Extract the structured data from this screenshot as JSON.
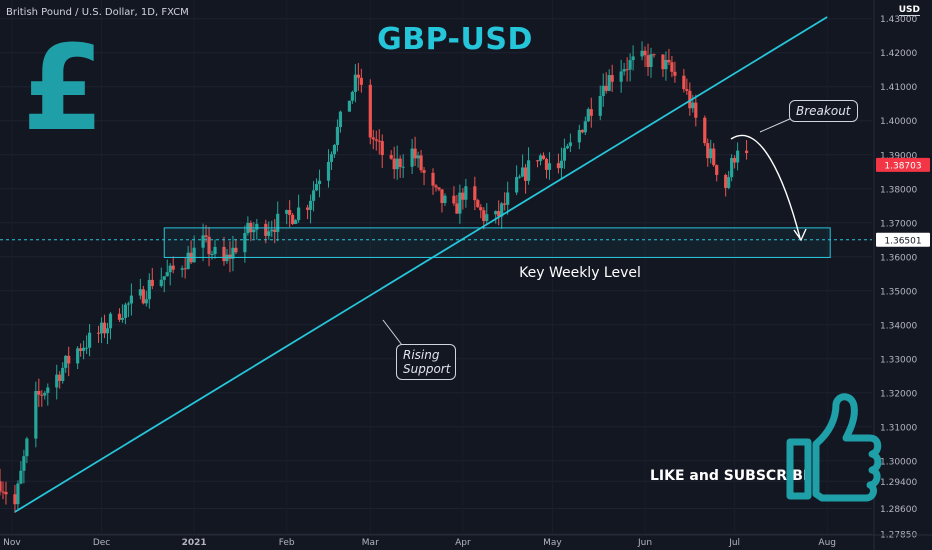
{
  "header": {
    "symbol": "British Pound / U.S. Dollar, 1D, FXCM",
    "currency": "USD",
    "title": "GBP-USD",
    "pound_sign": "£"
  },
  "annotations": {
    "key_level": "Key Weekly Level",
    "breakout": "Breakout",
    "rising_support_line1": "Rising",
    "rising_support_line2": "Support",
    "like": "LIKE and SUBSCRIBE"
  },
  "chart_data": {
    "type": "candlestick",
    "title": "GBP-USD",
    "instrument": "British Pound / U.S. Dollar",
    "timeframe": "1D",
    "source": "FXCM",
    "x_tick_labels": [
      "Nov",
      "Dec",
      "2021",
      "Feb",
      "Mar",
      "Apr",
      "May",
      "Jun",
      "Jul",
      "Aug"
    ],
    "y_tick_labels": [
      "1.43000",
      "1.42000",
      "1.41000",
      "1.40000",
      "1.39000",
      "1.38000",
      "1.37000",
      "1.36000",
      "1.35000",
      "1.34000",
      "1.33000",
      "1.32000",
      "1.31000",
      "1.30000",
      "1.29400",
      "1.28600",
      "1.27850"
    ],
    "ylim": [
      1.2785,
      1.4355
    ],
    "current_price": "1.38703",
    "crosshair_price": "1.36501",
    "key_level_zone": [
      1.3598,
      1.3685
    ],
    "rising_support": {
      "from": [
        "2020-11-02",
        1.285
      ],
      "to": [
        "2021-08-01",
        1.4305
      ]
    },
    "approx_path": [
      [
        "2020-10-28",
        1.294
      ],
      [
        "2020-11-02",
        1.287
      ],
      [
        "2020-11-09",
        1.318
      ],
      [
        "2020-11-16",
        1.325
      ],
      [
        "2020-11-23",
        1.333
      ],
      [
        "2020-12-01",
        1.338
      ],
      [
        "2020-12-07",
        1.344
      ],
      [
        "2020-12-14",
        1.348
      ],
      [
        "2020-12-18",
        1.353
      ],
      [
        "2020-12-24",
        1.355
      ],
      [
        "2021-01-04",
        1.364
      ],
      [
        "2021-01-11",
        1.358
      ],
      [
        "2021-01-18",
        1.367
      ],
      [
        "2021-01-25",
        1.369
      ],
      [
        "2021-02-01",
        1.371
      ],
      [
        "2021-02-08",
        1.376
      ],
      [
        "2021-02-15",
        1.39
      ],
      [
        "2021-02-22",
        1.407
      ],
      [
        "2021-02-25",
        1.413
      ],
      [
        "2021-03-01",
        1.396
      ],
      [
        "2021-03-08",
        1.386
      ],
      [
        "2021-03-15",
        1.391
      ],
      [
        "2021-03-22",
        1.379
      ],
      [
        "2021-03-29",
        1.373
      ],
      [
        "2021-04-01",
        1.379
      ],
      [
        "2021-04-08",
        1.372
      ],
      [
        "2021-04-12",
        1.371
      ],
      [
        "2021-04-19",
        1.381
      ],
      [
        "2021-04-26",
        1.39
      ],
      [
        "2021-05-03",
        1.386
      ],
      [
        "2021-05-10",
        1.397
      ],
      [
        "2021-05-17",
        1.41
      ],
      [
        "2021-05-24",
        1.416
      ],
      [
        "2021-06-01",
        1.418
      ],
      [
        "2021-06-07",
        1.417
      ],
      [
        "2021-06-14",
        1.41
      ],
      [
        "2021-06-21",
        1.393
      ],
      [
        "2021-06-28",
        1.381
      ],
      [
        "2021-07-02",
        1.393
      ],
      [
        "2021-07-05",
        1.389
      ]
    ]
  },
  "colors": {
    "background": "#131722",
    "bull": "#26a69a",
    "bear": "#ef5350",
    "accent": "#26c6da",
    "price_tag": "#f23645",
    "axis_text": "#b2b5be"
  }
}
